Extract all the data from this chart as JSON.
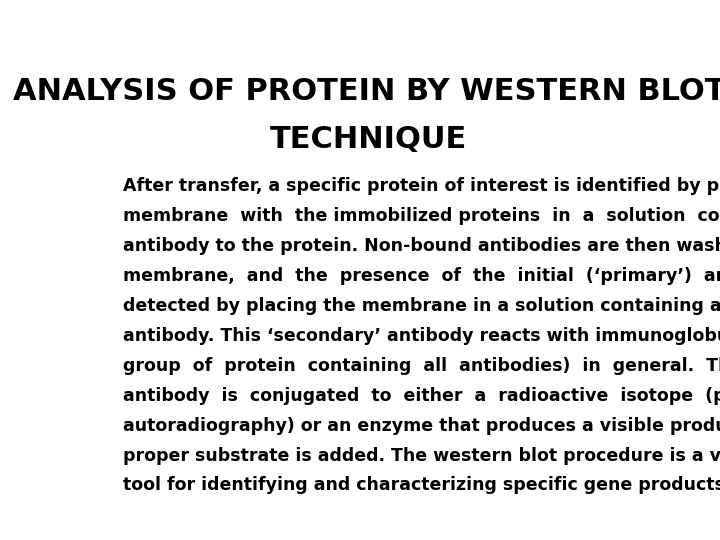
{
  "title_line1": "ANALYSIS OF PROTEIN BY WESTERN BLOT",
  "title_line2": "TECHNIQUE",
  "body_lines": [
    "After transfer, a specific protein of interest is identified by placing the",
    "membrane  with  the immobilized proteins  in  a  solution  containing  an",
    "antibody to the protein. Non-bound antibodies are then washed off the",
    "membrane,  and  the  presence  of  the  initial  (‘primary’)  antibody  is",
    "detected by placing the membrane in a solution containing a ‘secondary’",
    "antibody. This ‘secondary’ antibody reacts with immunoglobulins (the",
    "group  of  protein  containing  all  antibodies)  in  general.  The  secondary",
    "antibody  is  conjugated  to  either  a  radioactive  isotope  (permitting",
    "autoradiography) or an enzyme that produces a visible product when the",
    "proper substrate is added. The western blot procedure is a very powerful",
    "tool for identifying and characterizing specific gene products."
  ],
  "bg_color": "#ffffff",
  "title_color": "#000000",
  "text_color": "#000000",
  "title_fontsize": 22,
  "body_fontsize": 12.5
}
